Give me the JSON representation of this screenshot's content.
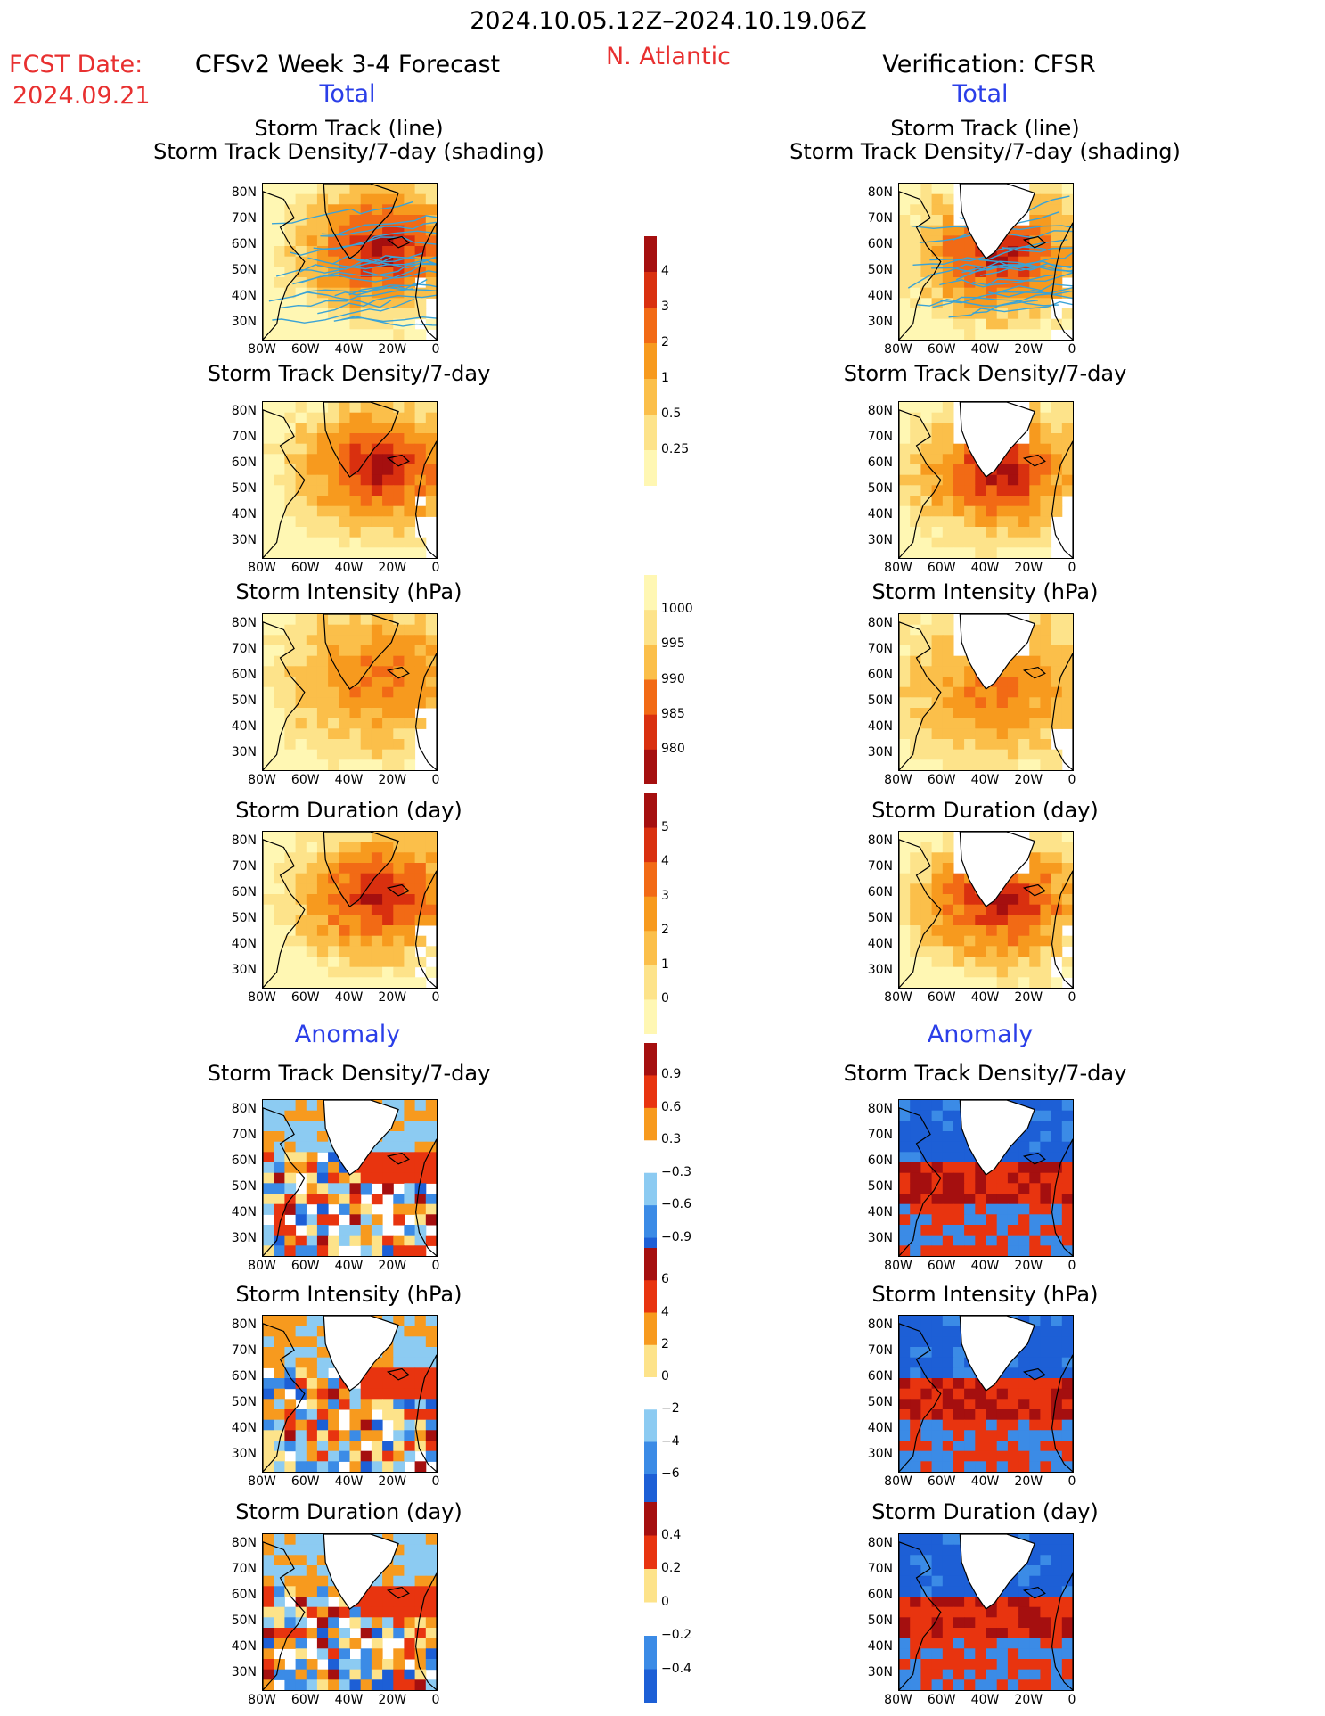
{
  "header": {
    "date_range": "2024.10.05.12Z–2024.10.19.06Z",
    "region": "N. Atlantic",
    "fcst_label": "FCST Date:",
    "fcst_date": "2024.09.21",
    "left_title": "CFSv2 Week 3-4 Forecast",
    "right_title": "Verification: CFSR"
  },
  "sections": {
    "total": "Total",
    "anomaly": "Anomaly"
  },
  "panels": {
    "track": [
      "Storm Track (line)",
      "Storm Track Density/7-day (shading)"
    ],
    "density": "Storm Track Density/7-day",
    "intensity": "Storm Intensity (hPa)",
    "duration": "Storm Duration (day)"
  },
  "axes": {
    "lat_ticks": [
      "80N",
      "70N",
      "60N",
      "50N",
      "40N",
      "30N"
    ],
    "lon_ticks": [
      "80W",
      "60W",
      "40W",
      "20W",
      "0"
    ]
  },
  "colorbars": {
    "density_total": [
      "4",
      "3",
      "2",
      "1",
      "0.5",
      "0.25"
    ],
    "intensity_total": [
      "1000",
      "995",
      "990",
      "985",
      "980"
    ],
    "duration_total": [
      "5",
      "4",
      "3",
      "2",
      "1",
      "0"
    ],
    "density_anom": [
      "0.9",
      "0.6",
      "0.3",
      "−0.3",
      "−0.6",
      "−0.9"
    ],
    "intensity_anom": [
      "6",
      "4",
      "2",
      "0",
      "−2",
      "−4",
      "−6"
    ],
    "duration_anom": [
      "0.4",
      "0.2",
      "0",
      "−0.2",
      "−0.4"
    ]
  },
  "colors": {
    "title_red": "#e83030",
    "label_blue": "#2a3ee8",
    "warm_scale": [
      "#fff7b3",
      "#fde38a",
      "#fbbf4a",
      "#f79a1e",
      "#f26a15",
      "#d9300f",
      "#a50f0f"
    ],
    "anom_scale": [
      "#1d5fd6",
      "#3b8be6",
      "#8ccbf2",
      "#ffffff",
      "#fde38a",
      "#f79a1e",
      "#e8340f",
      "#a50f0f"
    ],
    "track_line": "#3aa3d6"
  }
}
